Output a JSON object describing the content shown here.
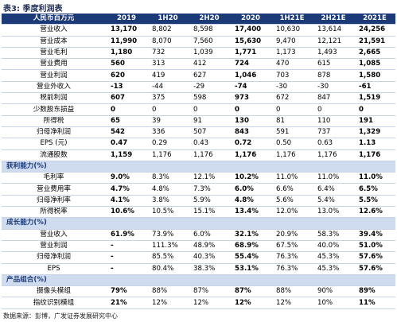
{
  "title": "表3: 季度利润表",
  "table": {
    "header": [
      "人民币百万元",
      "2019",
      "1H20",
      "2H20",
      "2020",
      "1H21E",
      "2H21E",
      "2021E"
    ],
    "body": [
      [
        "营业收入",
        "13,170",
        "8,802",
        "8,598",
        "17,400",
        "10,630",
        "13,614",
        "24,256"
      ],
      [
        "营业成本",
        "11,990",
        "8,070",
        "7,560",
        "15,630",
        "9,470",
        "12,121",
        "21,591"
      ],
      [
        "营业毛利",
        "1,180",
        "732",
        "1,039",
        "1,771",
        "1,173",
        "1,493",
        "2,665"
      ],
      [
        "营业费用",
        "560",
        "313",
        "412",
        "724",
        "470",
        "615",
        "1,085"
      ],
      [
        "营业利润",
        "620",
        "419",
        "627",
        "1,046",
        "703",
        "878",
        "1,580"
      ],
      [
        "营业外收入",
        "-13",
        "-44",
        "-29",
        "-74",
        "-30",
        "-30",
        "-61"
      ],
      [
        "税前利润",
        "607",
        "375",
        "598",
        "973",
        "672",
        "847",
        "1,519"
      ],
      [
        "少数股东损益",
        "0",
        "0",
        "0",
        "0",
        "0",
        "0",
        "0"
      ],
      [
        "所得税",
        "65",
        "39",
        "91",
        "130",
        "81",
        "110",
        "191"
      ],
      [
        "归母净利润",
        "542",
        "336",
        "507",
        "843",
        "591",
        "737",
        "1,329"
      ],
      [
        "EPS (元)",
        "0.47",
        "0.29",
        "0.43",
        "0.72",
        "0.50",
        "0.63",
        "1.13"
      ],
      [
        "流通股数",
        "1,159",
        "1,176",
        "1,176",
        "1,176",
        "1,176",
        "1,176",
        "1,176"
      ],
      [
        "获利能力(%)"
      ],
      [
        "毛利率",
        "9.0%",
        "8.3%",
        "12.1%",
        "10.2%",
        "11.0%",
        "11.0%",
        "11.0%"
      ],
      [
        "营业费用率",
        "4.7%",
        "4.8%",
        "7.3%",
        "6.0%",
        "6.6%",
        "6.4%",
        "6.5%"
      ],
      [
        "归母净利率",
        "4.1%",
        "3.8%",
        "5.9%",
        "4.8%",
        "5.6%",
        "5.4%",
        "5.5%"
      ],
      [
        "所得税率",
        "10.6%",
        "10.5%",
        "15.1%",
        "13.4%",
        "12.0%",
        "13.0%",
        "12.6%"
      ],
      [
        "成长能力(%)"
      ],
      [
        "营业收入",
        "61.9%",
        "73.9%",
        "6.0%",
        "32.1%",
        "20.9%",
        "58.3%",
        "39.4%"
      ],
      [
        "营业利润",
        "-",
        "111.3%",
        "48.9%",
        "68.9%",
        "67.5%",
        "40.0%",
        "51.0%"
      ],
      [
        "归母净利润",
        "-",
        "85.5%",
        "40.3%",
        "55.4%",
        "76.3%",
        "45.3%",
        "57.6%"
      ],
      [
        "EPS",
        "-",
        "80.4%",
        "38.3%",
        "53.1%",
        "76.3%",
        "45.3%",
        "57.6%"
      ],
      [
        "产品组合(%)"
      ],
      [
        "摄像头模组",
        "79%",
        "88%",
        "87%",
        "87%",
        "88%",
        "90%",
        "89%"
      ],
      [
        "指纹识别模组",
        "21%",
        "12%",
        "12%",
        "12%",
        "12%",
        "10%",
        "11%"
      ]
    ]
  },
  "source": "数据来源：彭博，广发证券发展研究中心"
}
